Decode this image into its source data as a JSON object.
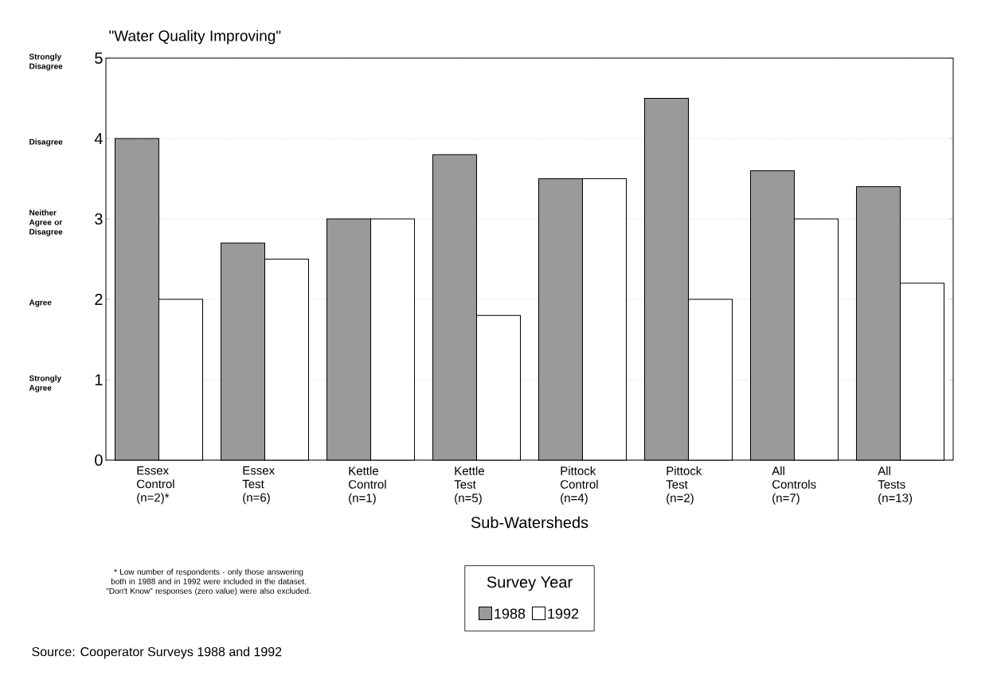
{
  "chart_data": {
    "type": "bar",
    "title": "\"Water Quality Improving\"",
    "xlabel": "Sub-Watersheds",
    "categories": [
      "Essex Control (n=2)*",
      "Essex Test (n=6)",
      "Kettle Control (n=1)",
      "Kettle Test (n=5)",
      "Pittock Control (n=4)",
      "Pittock Test (n=2)",
      "All Controls (n=7)",
      "All Tests (n=13)"
    ],
    "series": [
      {
        "name": "1988",
        "color": "#9a9a9a",
        "values": [
          4.0,
          2.7,
          3.0,
          3.8,
          3.5,
          4.5,
          3.6,
          3.4
        ]
      },
      {
        "name": "1992",
        "color": "#ffffff",
        "values": [
          2.0,
          2.5,
          3.0,
          1.8,
          3.5,
          2.0,
          3.0,
          2.2
        ]
      }
    ],
    "ylim": [
      0,
      5
    ],
    "yticks": [
      0,
      1,
      2,
      3,
      4,
      5
    ],
    "legend": "bottom",
    "legend_title": "Survey Year",
    "grid": "y",
    "annotations": [
      "Strongly Disagree",
      "Disagree",
      "Neither Agree or Disagree",
      "Agree",
      "Strongly Agree",
      "* Low number of respondents - only those answering both in 1988 and in 1992 were included in the dataset. \"Don't Know\" responses (zero value) were also excluded.",
      "Source: Cooperator Surveys 1988 and 1992"
    ]
  }
}
